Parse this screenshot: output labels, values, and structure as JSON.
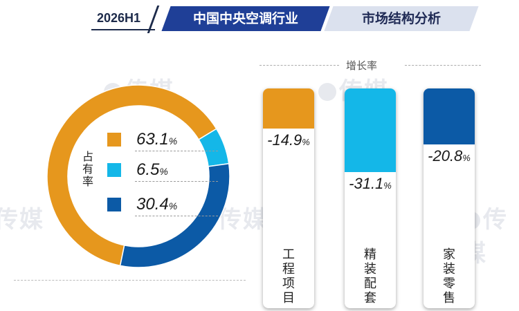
{
  "header": {
    "period": "2026H1",
    "title": "中国中央空调行业",
    "subtitle": "市场结构分析"
  },
  "watermark": "传媒",
  "chart_data": [
    {
      "type": "pie",
      "donut": true,
      "label": "占有率",
      "categories": [
        "工程项目",
        "精装配套",
        "家装零售"
      ],
      "values": [
        63.1,
        6.5,
        30.4
      ],
      "colors": [
        "#e6971d",
        "#14b7e8",
        "#0c5aa6"
      ],
      "value_texts": [
        "63.1",
        "6.5",
        "30.4"
      ],
      "unit": "%"
    },
    {
      "type": "bar",
      "title": "增长率",
      "categories": [
        "工程项目",
        "精装配套",
        "家装零售"
      ],
      "values": [
        -14.9,
        -31.1,
        -20.8
      ],
      "colors": [
        "#e6971d",
        "#14b7e8",
        "#0c5aa6"
      ],
      "value_texts": [
        "-14.9",
        "-31.1",
        "-20.8"
      ],
      "unit": "%"
    }
  ]
}
